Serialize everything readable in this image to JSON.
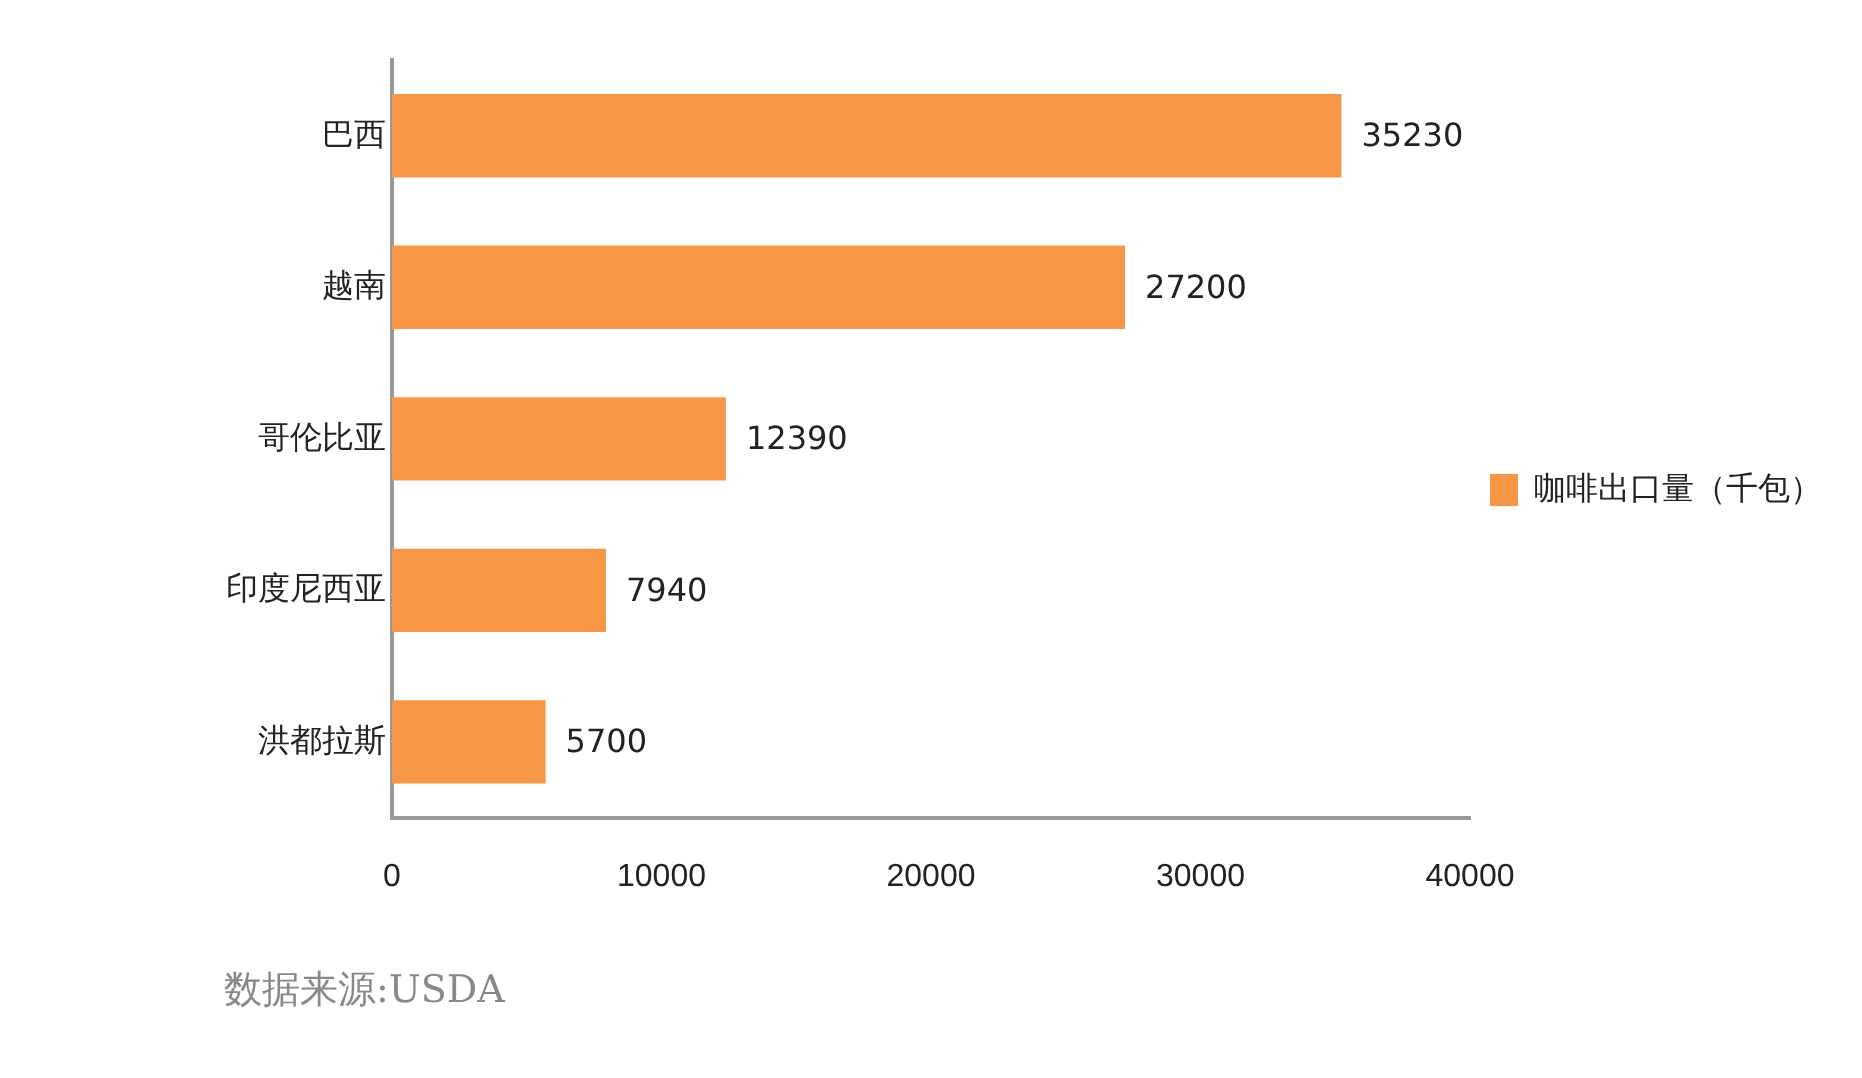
{
  "chart_data": {
    "type": "bar",
    "orientation": "horizontal",
    "categories": [
      "巴西",
      "越南",
      "哥伦比亚",
      "印度尼西亚",
      "洪都拉斯"
    ],
    "series": [
      {
        "name": "咖啡出口量（千包）",
        "color": "#f79646",
        "values": [
          35230,
          27200,
          12390,
          7940,
          5700
        ]
      }
    ],
    "xlim": [
      0,
      40000
    ],
    "xticks": [
      0,
      10000,
      20000,
      30000,
      40000
    ],
    "grid": false,
    "legend": "right",
    "data_labels": true,
    "annotations": [
      "数据来源:USDA"
    ]
  }
}
